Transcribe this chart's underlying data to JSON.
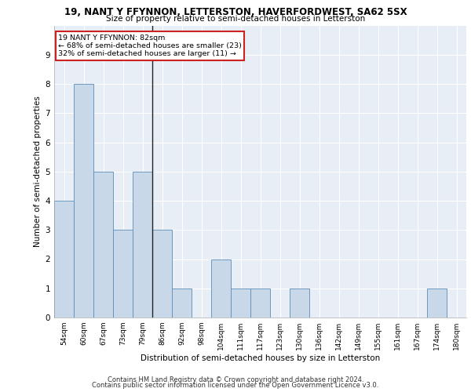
{
  "title1": "19, NANT Y FFYNNON, LETTERSTON, HAVERFORDWEST, SA62 5SX",
  "title2": "Size of property relative to semi-detached houses in Letterston",
  "xlabel": "Distribution of semi-detached houses by size in Letterston",
  "ylabel": "Number of semi-detached properties",
  "categories": [
    "54sqm",
    "60sqm",
    "67sqm",
    "73sqm",
    "79sqm",
    "86sqm",
    "92sqm",
    "98sqm",
    "104sqm",
    "111sqm",
    "117sqm",
    "123sqm",
    "130sqm",
    "136sqm",
    "142sqm",
    "149sqm",
    "155sqm",
    "161sqm",
    "167sqm",
    "174sqm",
    "180sqm"
  ],
  "values": [
    4,
    8,
    5,
    3,
    5,
    3,
    1,
    0,
    2,
    1,
    1,
    0,
    1,
    0,
    0,
    0,
    0,
    0,
    0,
    1,
    0
  ],
  "bar_color": "#c8d8e8",
  "bar_edge_color": "#5b8db8",
  "annotation_text_line1": "19 NANT Y FFYNNON: 82sqm",
  "annotation_text_line2": "← 68% of semi-detached houses are smaller (23)",
  "annotation_text_line3": "32% of semi-detached houses are larger (11) →",
  "annotation_box_color": "#ffffff",
  "annotation_box_edge": "#cc2222",
  "subject_line_color": "#222222",
  "ylim": [
    0,
    10
  ],
  "yticks": [
    0,
    1,
    2,
    3,
    4,
    5,
    6,
    7,
    8,
    9,
    10
  ],
  "bg_color": "#e8eef6",
  "footer1": "Contains HM Land Registry data © Crown copyright and database right 2024.",
  "footer2": "Contains public sector information licensed under the Open Government Licence v3.0."
}
